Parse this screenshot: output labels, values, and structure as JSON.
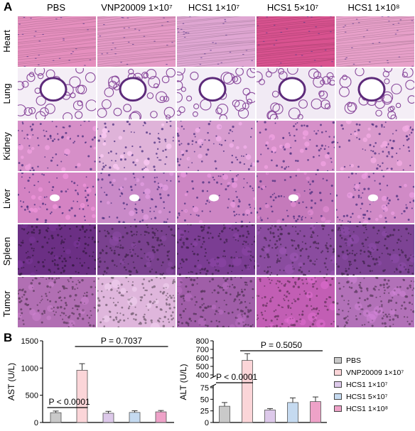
{
  "panel_a": {
    "letter": "A",
    "columns": [
      "PBS",
      "VNP20009 1×10⁷",
      "HCS1 1×10⁷",
      "HCS1 5×10⁷",
      "HCS1 1×10⁸"
    ],
    "rows": [
      {
        "label": "Heart",
        "colors": [
          "#e58fbe",
          "#e49ac6",
          "#dfa6d2",
          "#d8528f",
          "#e7a0c9"
        ],
        "texture": "fiber"
      },
      {
        "label": "Lung",
        "colors": [
          "#f4eef6",
          "#f3ecf5",
          "#f3eef7",
          "#f1eaf4",
          "#f4eef6"
        ],
        "texture": "lung"
      },
      {
        "label": "Kidney",
        "colors": [
          "#d68fc8",
          "#dfb3d9",
          "#d79ccf",
          "#d690c9",
          "#d999cc"
        ],
        "texture": "cells"
      },
      {
        "label": "Liver",
        "colors": [
          "#d483c3",
          "#c98ac8",
          "#cd86c4",
          "#c57abb",
          "#d08ac6"
        ],
        "texture": "cells"
      },
      {
        "label": "Spleen",
        "colors": [
          "#6b2f84",
          "#7a418f",
          "#7b3d93",
          "#8a4c9f",
          "#7d4394"
        ],
        "texture": "dense"
      },
      {
        "label": "Tumor",
        "colors": [
          "#b16fb3",
          "#dfb6dc",
          "#a05ea8",
          "#c25eb4",
          "#b271b8"
        ],
        "texture": "dense"
      }
    ]
  },
  "panel_b": {
    "letter": "B",
    "chart_data": [
      {
        "type": "bar",
        "ylabel": "AST (U/L)",
        "ylim": [
          0,
          1500
        ],
        "yticks": [
          "0",
          "500",
          "1000",
          "1500"
        ],
        "categories": [
          "PBS",
          "VNP20009 1×10⁷",
          "HCS1 1×10⁷",
          "HCS1 5×10⁷",
          "HCS1 1×10⁸"
        ],
        "values": [
          180,
          960,
          170,
          185,
          195
        ],
        "errors": [
          30,
          120,
          35,
          30,
          25
        ],
        "annotations": [
          {
            "text": "P = 0.7037",
            "from": 1,
            "to": 4
          },
          {
            "text": "P < 0.0001",
            "from": 0,
            "to": 1
          }
        ]
      },
      {
        "type": "bar",
        "ylabel": "ALT (U/L)",
        "ylim": [
          0,
          800
        ],
        "yticks": [
          "0",
          "25",
          "50",
          "75",
          "400",
          "500",
          "600",
          "700",
          "800"
        ],
        "categories": [
          "PBS",
          "VNP20009 1×10⁷",
          "HCS1 1×10⁷",
          "HCS1 5×10⁷",
          "HCS1 1×10⁸"
        ],
        "values": [
          35,
          570,
          27,
          43,
          45
        ],
        "errors": [
          8,
          80,
          3,
          10,
          10
        ],
        "annotations": [
          {
            "text": "P = 0.5050",
            "from": 1,
            "to": 4
          },
          {
            "text": "P < 0.0001",
            "from": 0,
            "to": 1
          }
        ]
      }
    ],
    "legend": [
      {
        "label": "PBS",
        "color": "#c9c9c9"
      },
      {
        "label": "VNP20009 1×10⁷",
        "color": "#fbd5d8"
      },
      {
        "label": "HCS1 1×10⁷",
        "color": "#ddc9ea"
      },
      {
        "label": "HCS1 5×10⁷",
        "color": "#c5daf0"
      },
      {
        "label": "HCS1 1×10⁸",
        "color": "#eea2c8"
      }
    ]
  }
}
